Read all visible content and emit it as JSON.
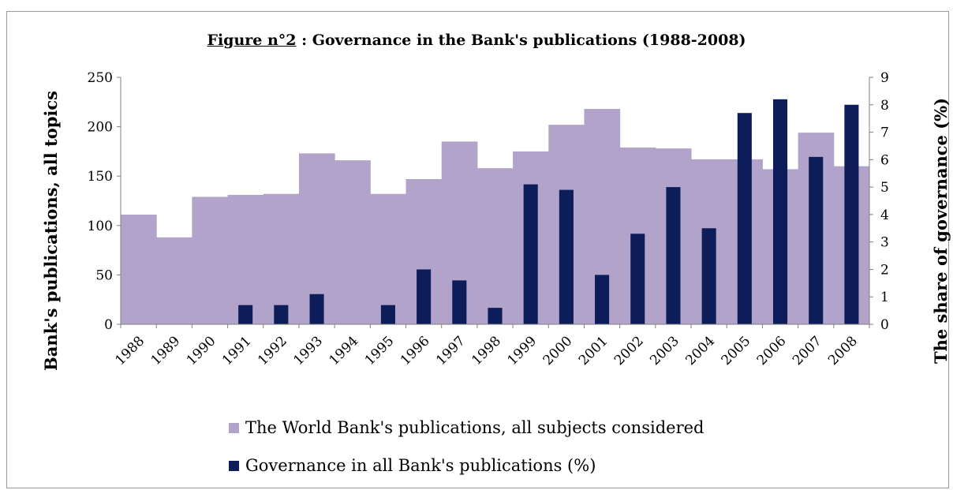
{
  "chart_data": {
    "type": "bar",
    "title_prefix": "Figure n°2",
    "title_rest": " : Governance in the Bank's publications (1988-2008)",
    "categories": [
      "1988",
      "1989",
      "1990",
      "1991",
      "1992",
      "1993",
      "1994",
      "1995",
      "1996",
      "1997",
      "1998",
      "1999",
      "2000",
      "2001",
      "2002",
      "2003",
      "2004",
      "2005",
      "2006",
      "2007",
      "2008"
    ],
    "series": [
      {
        "name": "The World Bank's publications, all subjects considered",
        "axis": "left",
        "style": "area-step",
        "color": "#b1a3c9",
        "values": [
          111,
          88,
          129,
          131,
          132,
          173,
          166,
          132,
          147,
          185,
          158,
          175,
          202,
          218,
          179,
          178,
          167,
          167,
          157,
          194,
          160
        ]
      },
      {
        "name": "Governance in all Bank's publications (%)",
        "axis": "right",
        "style": "bar",
        "color": "#0d1d5a",
        "values": [
          0,
          0,
          0,
          0.7,
          0.7,
          1.1,
          0,
          0.7,
          2.0,
          1.6,
          0.6,
          5.1,
          4.9,
          1.8,
          3.3,
          5.0,
          3.5,
          7.7,
          8.2,
          6.1,
          8.0
        ]
      }
    ],
    "ylabel": "Bank's publications, all topics",
    "y2label": "The share of governance (%)",
    "ylim": [
      0,
      250
    ],
    "yticks": [
      "0",
      "50",
      "100",
      "150",
      "200",
      "250"
    ],
    "y2lim": [
      0,
      9
    ],
    "y2ticks": [
      "0",
      "1",
      "2",
      "3",
      "4",
      "5",
      "6",
      "7",
      "8",
      "9"
    ],
    "legend_position": "bottom"
  }
}
